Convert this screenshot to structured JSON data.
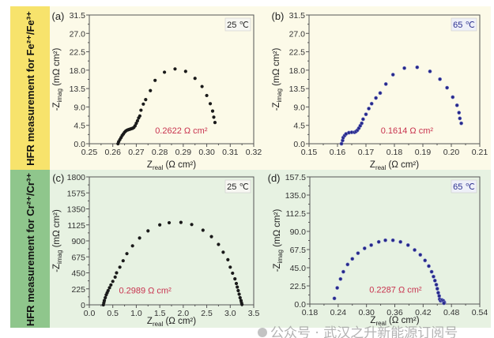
{
  "row_labels": [
    "HFR measurement for Fe²⁺/Fe³⁺",
    "HFR measurement for Cr²⁺/Cr³⁺"
  ],
  "watermark": "公众号 · 武汉之升新能源订阅号",
  "colors": {
    "row1_strip": "#f7e36c",
    "row1_bg": "#fcfae8",
    "row2_strip": "#8fc68c",
    "row2_bg": "#e7f2e2",
    "annotation": "#c8324e",
    "black_series": "#1a1a1a",
    "blue_series": "#26288a"
  },
  "chart_data": [
    {
      "type": "scatter",
      "panel": "(a)",
      "temperature": "25 ℃",
      "annotation": "0.2622 Ω cm²",
      "xlabel": "Z_real (Ω cm²)",
      "ylabel": "-Z_imag (mΩ cm²)",
      "xlim": [
        0.25,
        0.32
      ],
      "xticks": [
        "0.25",
        "0.26",
        "0.27",
        "0.28",
        "0.29",
        "0.30",
        "0.31",
        "0.32"
      ],
      "ylim": [
        0,
        31.5
      ],
      "yticks": [
        "0.0",
        "4.5",
        "9.0",
        "13.5",
        "18.0",
        "22.5",
        "27.0",
        "31.5"
      ],
      "series": [
        {
          "name": "25 ℃",
          "color": "#1a1a1a",
          "x": [
            0.2622,
            0.2625,
            0.263,
            0.2635,
            0.264,
            0.2645,
            0.265,
            0.2655,
            0.266,
            0.2665,
            0.267,
            0.2675,
            0.268,
            0.2685,
            0.269,
            0.2695,
            0.27,
            0.2705,
            0.271,
            0.2715,
            0.272,
            0.273,
            0.274,
            0.276,
            0.278,
            0.282,
            0.2865,
            0.291,
            0.295,
            0.298,
            0.3,
            0.3015,
            0.3025,
            0.303,
            0.3035
          ],
          "y": [
            0,
            0.5,
            1,
            1.5,
            2,
            2.4,
            2.8,
            3.1,
            3.3,
            3.4,
            3.5,
            3.6,
            3.7,
            3.8,
            4.0,
            4.4,
            5.0,
            5.6,
            6.3,
            6.8,
            8.2,
            9.7,
            10.8,
            13.0,
            15.5,
            17.5,
            18.3,
            17.7,
            16.0,
            14.0,
            11.8,
            9.8,
            8.0,
            6.5,
            5.2
          ]
        }
      ]
    },
    {
      "type": "scatter",
      "panel": "(b)",
      "temperature": "65 ℃",
      "annotation": "0.1614 Ω cm²",
      "xlabel": "Z_real (Ω cm²)",
      "ylabel": "-Z_imag (mΩ cm²)",
      "xlim": [
        0.15,
        0.21
      ],
      "xticks": [
        "0.15",
        "0.16",
        "0.17",
        "0.18",
        "0.19",
        "0.20",
        "0.21"
      ],
      "ylim": [
        0,
        31.5
      ],
      "yticks": [
        "0.0",
        "4.5",
        "9.0",
        "13.5",
        "18.0",
        "22.5",
        "27.0",
        "31.5"
      ],
      "series": [
        {
          "name": "65 ℃",
          "color": "#26288a",
          "x": [
            0.1614,
            0.1618,
            0.162,
            0.1625,
            0.163,
            0.164,
            0.165,
            0.166,
            0.1665,
            0.167,
            0.1675,
            0.168,
            0.1685,
            0.169,
            0.17,
            0.171,
            0.172,
            0.1735,
            0.175,
            0.177,
            0.1795,
            0.1835,
            0.188,
            0.1925,
            0.196,
            0.1985,
            0.2005,
            0.202,
            0.2027,
            0.203,
            0.2035
          ],
          "y": [
            0,
            0.8,
            1.5,
            2.0,
            2.4,
            2.7,
            2.8,
            2.8,
            3.0,
            3.3,
            3.8,
            4.4,
            5.0,
            6.0,
            7.2,
            8.6,
            9.8,
            11.2,
            12.4,
            14.6,
            16.9,
            18.5,
            18.7,
            17.7,
            15.8,
            13.7,
            11.4,
            9.4,
            7.6,
            6.2,
            5.0
          ]
        }
      ]
    },
    {
      "type": "scatter",
      "panel": "(c)",
      "temperature": "25 ℃",
      "annotation": "0.2989 Ω cm²",
      "xlabel": "Z_real (Ω cm²)",
      "ylabel": "-Z_imag (mΩ cm²)",
      "xlim": [
        0,
        3.5
      ],
      "xticks": [
        "0.0",
        "0.5",
        "1.0",
        "1.5",
        "2.0",
        "2.5",
        "3.0",
        "3.5"
      ],
      "ylim": [
        0,
        1800
      ],
      "yticks": [
        "0",
        "225",
        "450",
        "675",
        "900",
        "1125",
        "1350",
        "1575",
        "1800"
      ],
      "series": [
        {
          "name": "25 ℃",
          "color": "#1a1a1a",
          "x": [
            0.2989,
            0.31,
            0.32,
            0.34,
            0.36,
            0.38,
            0.4,
            0.43,
            0.46,
            0.5,
            0.55,
            0.58,
            0.65,
            0.72,
            0.8,
            0.92,
            1.07,
            1.25,
            1.5,
            1.7,
            1.95,
            2.18,
            2.42,
            2.6,
            2.75,
            2.85,
            2.95,
            3.0,
            3.05,
            3.1,
            3.13,
            3.15,
            3.17,
            3.19,
            3.21,
            3.23,
            3.24,
            3.25
          ],
          "y": [
            0,
            30,
            60,
            100,
            140,
            170,
            200,
            240,
            280,
            330,
            390,
            450,
            530,
            620,
            720,
            830,
            940,
            1040,
            1125,
            1155,
            1160,
            1130,
            1050,
            960,
            850,
            740,
            635,
            530,
            445,
            365,
            300,
            250,
            200,
            150,
            100,
            60,
            30,
            5
          ]
        }
      ]
    },
    {
      "type": "scatter",
      "panel": "(d)",
      "temperature": "65 ℃",
      "annotation": "0.2287 Ω cm²",
      "xlabel": "Z_real (Ω cm²)",
      "ylabel": "-Z_imag (mΩ cm²)",
      "xlim": [
        0.18,
        0.54
      ],
      "xticks": [
        "0.18",
        "0.24",
        "0.30",
        "0.36",
        "0.42",
        "0.48",
        "0.54"
      ],
      "ylim": [
        0,
        157.5
      ],
      "yticks": [
        "0.0",
        "22.5",
        "45.0",
        "67.5",
        "90.0",
        "112.5",
        "135.0",
        "157.5"
      ],
      "series": [
        {
          "name": "65 ℃",
          "color": "#26288a",
          "x": [
            0.232,
            0.238,
            0.245,
            0.251,
            0.26,
            0.27,
            0.282,
            0.296,
            0.31,
            0.326,
            0.34,
            0.356,
            0.372,
            0.388,
            0.402,
            0.414,
            0.424,
            0.432,
            0.438,
            0.442,
            0.445,
            0.448,
            0.45,
            0.452,
            0.454,
            0.455,
            0.457,
            0.46,
            0.463,
            0.465,
            0.464
          ],
          "y": [
            7,
            20,
            31,
            40,
            49,
            56,
            63,
            69,
            73,
            77,
            79,
            79,
            77,
            73,
            67,
            61,
            54,
            47,
            40,
            34,
            29,
            24,
            19,
            14,
            10,
            6,
            4,
            5,
            4,
            2,
            1
          ]
        }
      ]
    }
  ]
}
